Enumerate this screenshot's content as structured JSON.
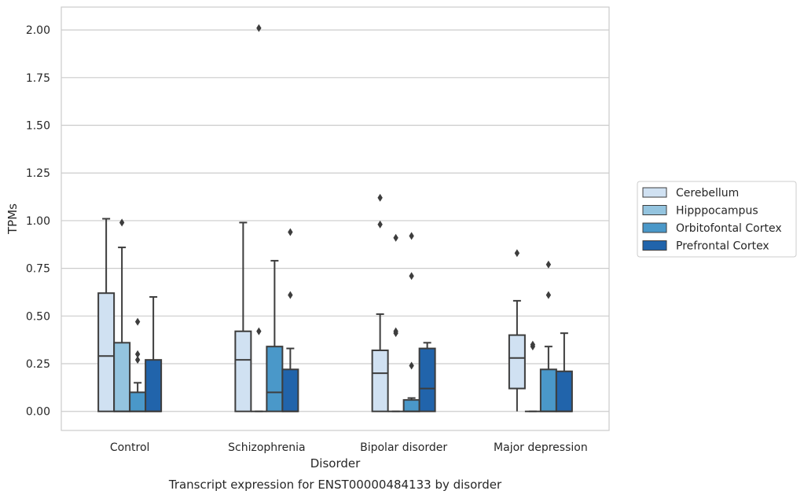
{
  "chart_data": {
    "type": "box",
    "caption": "Transcript expression for ENST00000484133 by disorder",
    "xlabel": "Disorder",
    "ylabel": "TPMs",
    "ylim": [
      -0.1,
      2.12
    ],
    "yticks": [
      0.0,
      0.25,
      0.5,
      0.75,
      1.0,
      1.25,
      1.5,
      1.75,
      2.0
    ],
    "ytick_labels": [
      "0.00",
      "0.25",
      "0.50",
      "0.75",
      "1.00",
      "1.25",
      "1.50",
      "1.75",
      "2.00"
    ],
    "grid": true,
    "legend_position": "right",
    "categories": [
      "Control",
      "Schizophrenia",
      "Bipolar disorder",
      "Major depression"
    ],
    "series": [
      {
        "name": "Cerebellum",
        "color": "#d0e1f2",
        "boxes": [
          {
            "min": 0.0,
            "q1": 0.0,
            "median": 0.29,
            "q3": 0.62,
            "max": 1.01,
            "outliers": []
          },
          {
            "min": 0.0,
            "q1": 0.0,
            "median": 0.27,
            "q3": 0.42,
            "max": 0.99,
            "outliers": []
          },
          {
            "min": 0.0,
            "q1": 0.0,
            "median": 0.2,
            "q3": 0.32,
            "max": 0.51,
            "outliers": [
              0.98,
              1.12
            ]
          },
          {
            "min": 0.0,
            "q1": 0.12,
            "median": 0.28,
            "q3": 0.4,
            "max": 0.58,
            "outliers": [
              0.83
            ]
          }
        ]
      },
      {
        "name": "Hipppocampus",
        "color": "#94c4df",
        "boxes": [
          {
            "min": 0.0,
            "q1": 0.0,
            "median": 0.0,
            "q3": 0.36,
            "max": 0.86,
            "outliers": [
              0.99
            ]
          },
          {
            "min": 0.0,
            "q1": 0.0,
            "median": 0.0,
            "q3": 0.0,
            "max": 0.0,
            "outliers": [
              0.42,
              2.01
            ]
          },
          {
            "min": 0.0,
            "q1": 0.0,
            "median": 0.0,
            "q3": 0.0,
            "max": 0.0,
            "outliers": [
              0.41,
              0.42,
              0.91
            ]
          },
          {
            "min": 0.0,
            "q1": 0.0,
            "median": 0.0,
            "q3": 0.0,
            "max": 0.0,
            "outliers": [
              0.34,
              0.35
            ]
          }
        ]
      },
      {
        "name": "Orbitofontal Cortex",
        "color": "#4a98c9",
        "boxes": [
          {
            "min": 0.0,
            "q1": 0.0,
            "median": 0.0,
            "q3": 0.1,
            "max": 0.15,
            "outliers": [
              0.27,
              0.3,
              0.47
            ]
          },
          {
            "min": 0.0,
            "q1": 0.0,
            "median": 0.1,
            "q3": 0.34,
            "max": 0.79,
            "outliers": []
          },
          {
            "min": 0.0,
            "q1": 0.0,
            "median": 0.0,
            "q3": 0.06,
            "max": 0.07,
            "outliers": [
              0.24,
              0.71,
              0.92
            ]
          },
          {
            "min": 0.0,
            "q1": 0.0,
            "median": 0.0,
            "q3": 0.22,
            "max": 0.34,
            "outliers": [
              0.61,
              0.77
            ]
          }
        ]
      },
      {
        "name": "Prefrontal Cortex",
        "color": "#2164ab",
        "boxes": [
          {
            "min": 0.0,
            "q1": 0.0,
            "median": 0.0,
            "q3": 0.27,
            "max": 0.6,
            "outliers": []
          },
          {
            "min": 0.0,
            "q1": 0.0,
            "median": 0.0,
            "q3": 0.22,
            "max": 0.33,
            "outliers": [
              0.61,
              0.94
            ]
          },
          {
            "min": 0.0,
            "q1": 0.0,
            "median": 0.12,
            "q3": 0.33,
            "max": 0.36,
            "outliers": []
          },
          {
            "min": 0.0,
            "q1": 0.0,
            "median": 0.0,
            "q3": 0.21,
            "max": 0.41,
            "outliers": []
          }
        ]
      }
    ]
  }
}
